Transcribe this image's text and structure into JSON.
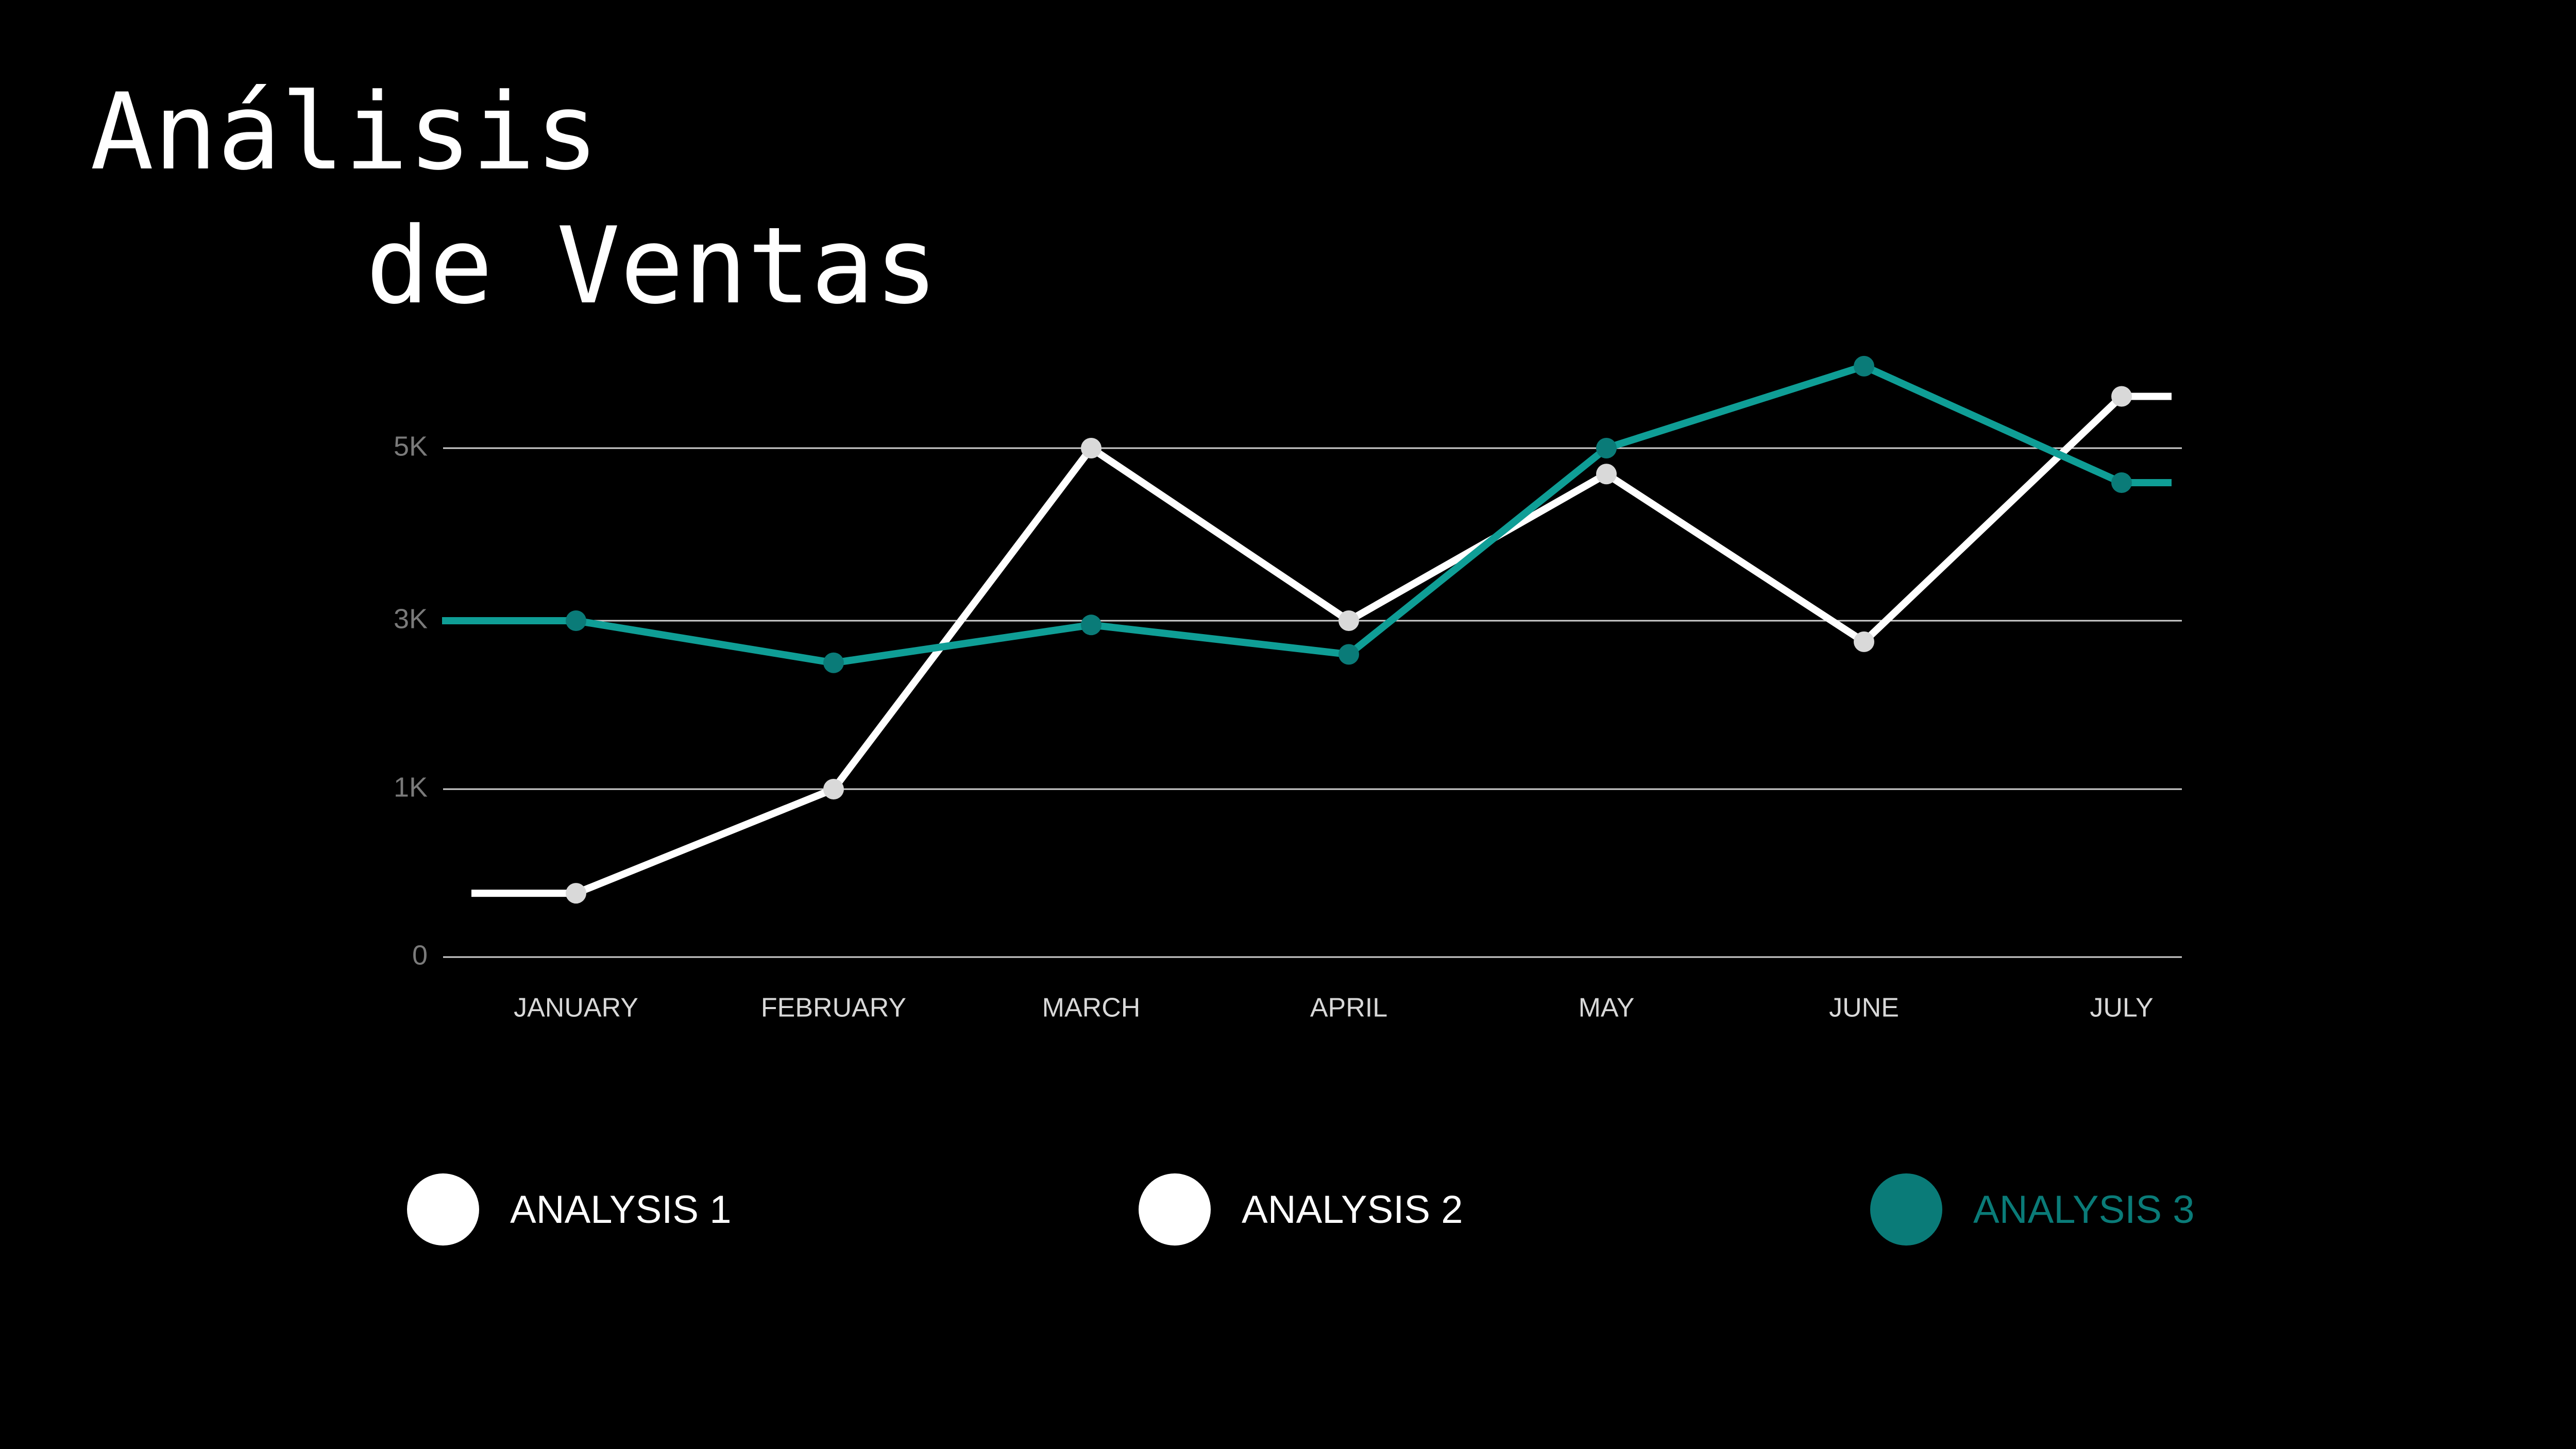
{
  "title": {
    "line1": "Análisis",
    "line2": "de Ventas"
  },
  "colors": {
    "background": "#000000",
    "analysis_1": "#ffffff",
    "analysis_2": "#ffffff",
    "analysis_3": "#0f9e96",
    "analysis_3_marker": "#0a7b78",
    "light_marker": "#d9d9d9",
    "gridline": "#cfcfcf"
  },
  "legend": [
    {
      "label": "ANALYSIS 1",
      "color": "#ffffff",
      "text_color": "#ffffff"
    },
    {
      "label": "ANALYSIS 2",
      "color": "#ffffff",
      "text_color": "#ffffff"
    },
    {
      "label": "ANALYSIS 3",
      "color": "#0a7b78",
      "text_color": "#0a7b78"
    }
  ],
  "chart_data": {
    "type": "line",
    "title": "Análisis de Ventas",
    "xlabel": "",
    "ylabel": "",
    "categories": [
      "JANUARY",
      "FEBRUARY",
      "MARCH",
      "APRIL",
      "MAY",
      "JUNE",
      "JULY"
    ],
    "y_ticks": [
      {
        "label": "0",
        "value": 0
      },
      {
        "label": "1K",
        "value": 1000
      },
      {
        "label": "3K",
        "value": 3000
      },
      {
        "label": "5K",
        "value": 5000
      }
    ],
    "grid": true,
    "legend_position": "bottom",
    "series": [
      {
        "name": "ANALYSIS 1",
        "color": "#ffffff",
        "marker_color": "#d9d9d9",
        "values": [
          380,
          1000,
          5000,
          3000,
          4700,
          2750,
          5600
        ]
      },
      {
        "name": "ANALYSIS 3",
        "color": "#0f9e96",
        "marker_color": "#0a7b78",
        "values": [
          3000,
          2500,
          2950,
          2600,
          5000,
          5950,
          4600
        ]
      }
    ]
  }
}
